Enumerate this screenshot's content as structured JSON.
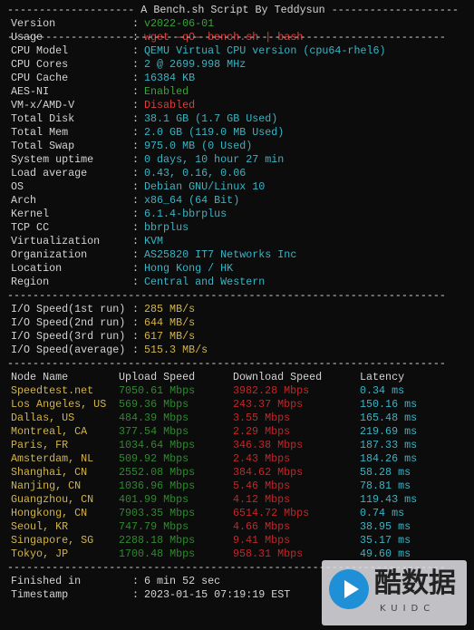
{
  "header": {
    "title": "-------------------- A Bench.sh Script By Teddysun --------------------",
    "separator": "---------------------------------------------------------------------"
  },
  "colon": ":",
  "intro": [
    {
      "label": "Version",
      "value": "v2022-06-01"
    },
    {
      "label": "Usage",
      "value": "wget -qO- bench.sh | bash"
    }
  ],
  "system": [
    {
      "label": "CPU Model",
      "value": "QEMU Virtual CPU version (cpu64-rhel6)"
    },
    {
      "label": "CPU Cores",
      "value": "2 @ 2699.998 MHz"
    },
    {
      "label": "CPU Cache",
      "value": "16384 KB"
    },
    {
      "label": "AES-NI",
      "value": "Enabled"
    },
    {
      "label": "VM-x/AMD-V",
      "value": "Disabled"
    },
    {
      "label": "Total Disk",
      "value": "38.1 GB (1.7 GB Used)"
    },
    {
      "label": "Total Mem",
      "value": "2.0 GB (119.0 MB Used)"
    },
    {
      "label": "Total Swap",
      "value": "975.0 MB (0 Used)"
    },
    {
      "label": "System uptime",
      "value": "0 days, 10 hour 27 min"
    },
    {
      "label": "Load average",
      "value": "0.43, 0.16, 0.06"
    },
    {
      "label": "OS",
      "value": "Debian GNU/Linux 10"
    },
    {
      "label": "Arch",
      "value": "x86_64 (64 Bit)"
    },
    {
      "label": "Kernel",
      "value": "6.1.4-bbrplus"
    },
    {
      "label": "TCP CC",
      "value": "bbrplus"
    },
    {
      "label": "Virtualization",
      "value": "KVM"
    },
    {
      "label": "Organization",
      "value": "AS25820 IT7 Networks Inc"
    },
    {
      "label": "Location",
      "value": "Hong Kong / HK"
    },
    {
      "label": "Region",
      "value": "Central and Western"
    }
  ],
  "io": [
    {
      "label": "I/O Speed(1st run)",
      "value": "285 MB/s"
    },
    {
      "label": "I/O Speed(2nd run)",
      "value": "644 MB/s"
    },
    {
      "label": "I/O Speed(3rd run)",
      "value": "617 MB/s"
    },
    {
      "label": "I/O Speed(average)",
      "value": "515.3 MB/s"
    }
  ],
  "speedtest": {
    "columns": [
      "Node Name",
      "Upload Speed",
      "Download Speed",
      "Latency"
    ],
    "rows": [
      [
        "Speedtest.net",
        "7050.61 Mbps",
        "3982.28 Mbps",
        "0.34 ms"
      ],
      [
        "Los Angeles, US",
        "569.36 Mbps",
        "243.37 Mbps",
        "150.16 ms"
      ],
      [
        "Dallas, US",
        "484.39 Mbps",
        "3.55 Mbps",
        "165.48 ms"
      ],
      [
        "Montreal, CA",
        "377.54 Mbps",
        "2.29 Mbps",
        "219.69 ms"
      ],
      [
        "Paris, FR",
        "1034.64 Mbps",
        "346.38 Mbps",
        "187.33 ms"
      ],
      [
        "Amsterdam, NL",
        "509.92 Mbps",
        "2.43 Mbps",
        "184.26 ms"
      ],
      [
        "Shanghai, CN",
        "2552.08 Mbps",
        "384.62 Mbps",
        "58.28 ms"
      ],
      [
        "Nanjing, CN",
        "1036.96 Mbps",
        "5.46 Mbps",
        "78.81 ms"
      ],
      [
        "Guangzhou, CN",
        "401.99 Mbps",
        "4.12 Mbps",
        "119.43 ms"
      ],
      [
        "Hongkong, CN",
        "7903.35 Mbps",
        "6514.72 Mbps",
        "0.74 ms"
      ],
      [
        "Seoul, KR",
        "747.79 Mbps",
        "4.66 Mbps",
        "38.95 ms"
      ],
      [
        "Singapore, SG",
        "2288.18 Mbps",
        "9.41 Mbps",
        "35.17 ms"
      ],
      [
        "Tokyo, JP",
        "1700.48 Mbps",
        "958.31 Mbps",
        "49.60 ms"
      ]
    ]
  },
  "footer": [
    {
      "label": "Finished in",
      "value": "6 min 52 sec"
    },
    {
      "label": "Timestamp",
      "value": "2023-01-15 07:19:19 EST"
    }
  ],
  "watermark": {
    "brand": "酷数据",
    "sub": "KUIDC"
  }
}
